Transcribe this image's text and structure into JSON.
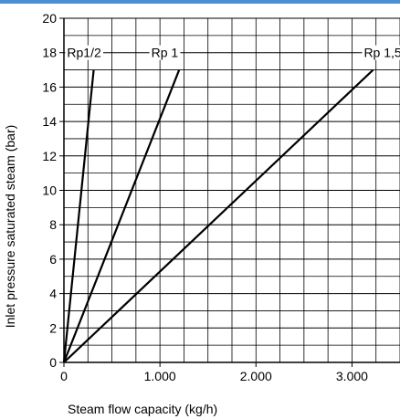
{
  "chart_data": {
    "type": "line",
    "xlabel": "Steam flow capacity (kg/h)",
    "ylabel": "Inlet pressure saturated steam (bar)",
    "xlim": [
      0,
      3500
    ],
    "ylim": [
      0,
      20
    ],
    "x_ticks": [
      "0",
      "1.000",
      "2.000",
      "3.000"
    ],
    "x_tick_values": [
      0,
      1000,
      2000,
      3000
    ],
    "y_ticks": [
      "0",
      "2",
      "4",
      "6",
      "8",
      "10",
      "12",
      "14",
      "16",
      "18",
      "20"
    ],
    "y_tick_values": [
      0,
      2,
      4,
      6,
      8,
      10,
      12,
      14,
      16,
      18,
      20
    ],
    "grid": true,
    "series": [
      {
        "name": "Rp1/2",
        "points": [
          [
            0,
            0
          ],
          [
            310,
            17
          ]
        ],
        "label_at": [
          210,
          18
        ]
      },
      {
        "name": "Rp 1",
        "points": [
          [
            0,
            0
          ],
          [
            1200,
            17
          ]
        ],
        "label_at": [
          1050,
          18
        ]
      },
      {
        "name": "Rp 1,5",
        "points": [
          [
            0,
            0
          ],
          [
            3220,
            17
          ]
        ],
        "label_at": [
          3320,
          18
        ]
      }
    ],
    "colors": {
      "line": "#000000",
      "grid": "#000000",
      "frame_top": "#4a8fd8"
    }
  }
}
